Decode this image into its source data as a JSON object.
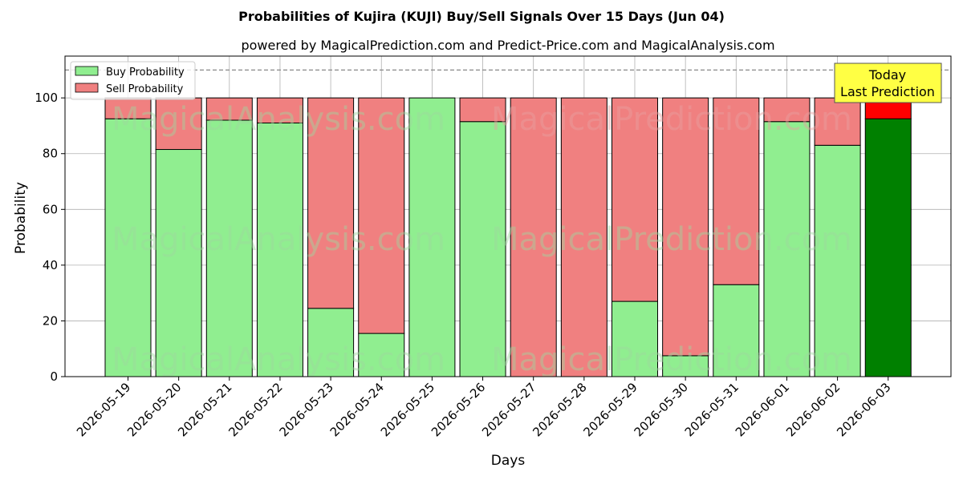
{
  "chart_data": {
    "type": "bar",
    "stacked": true,
    "title": "Probabilities of Kujira (KUJI) Buy/Sell Signals Over 15 Days (Jun 04)",
    "subtitle": "powered by MagicalPrediction.com and Predict-Price.com and MagicalAnalysis.com",
    "xlabel": "Days",
    "ylabel": "Probability",
    "ylim": [
      0,
      115
    ],
    "yticks": [
      0,
      20,
      40,
      60,
      80,
      100
    ],
    "reference_line": 110,
    "grid": true,
    "legend_position": "top-left",
    "categories": [
      "2026-05-19",
      "2026-05-20",
      "2026-05-21",
      "2026-05-22",
      "2026-05-23",
      "2026-05-24",
      "2026-05-25",
      "2026-05-26",
      "2026-05-27",
      "2026-05-28",
      "2026-05-29",
      "2026-05-30",
      "2026-05-31",
      "2026-06-01",
      "2026-06-02",
      "2026-06-03"
    ],
    "series": [
      {
        "name": "Buy Probability",
        "color": "#90ee90",
        "values": [
          92.5,
          81.5,
          92,
          91,
          24.5,
          15.5,
          100,
          91.5,
          0,
          0,
          27,
          7.5,
          33,
          91.5,
          83,
          92.5
        ]
      },
      {
        "name": "Sell Probability",
        "color": "#f08080",
        "values": [
          7.5,
          18.5,
          8,
          9,
          75.5,
          84.5,
          0,
          8.5,
          100,
          100,
          73,
          92.5,
          67,
          8.5,
          17,
          7.5
        ]
      }
    ],
    "highlight": {
      "index": 15,
      "buy_color": "#008000",
      "sell_color": "#ff0000"
    },
    "annotation": {
      "line1": "Today",
      "line2": "Last Prediction",
      "background": "#ffff44"
    },
    "watermarks": [
      "MagicalAnalysis.com",
      "MagicalPrediction.com"
    ]
  }
}
